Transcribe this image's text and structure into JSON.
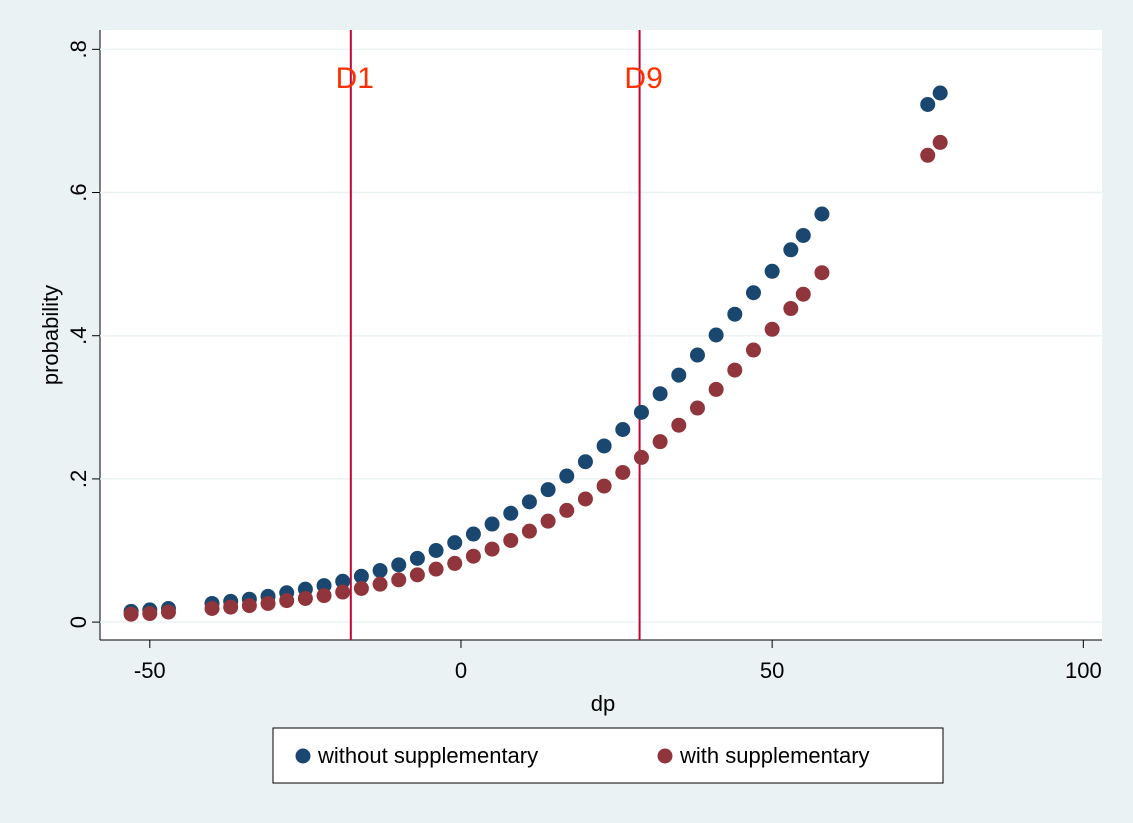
{
  "chart_data": {
    "type": "scatter",
    "x_label": "dp",
    "y_label": "probability",
    "xlim": [
      -58,
      103
    ],
    "ylim": [
      -0.025,
      0.827
    ],
    "xticks": [
      -50,
      0,
      50,
      100
    ],
    "yticks": [
      0,
      {
        "value": 0.2,
        "label": ".2"
      },
      {
        "value": 0.4,
        "label": ".4"
      },
      {
        "value": 0.6,
        "label": ".6"
      },
      {
        "value": 0.8,
        "label": ".8"
      }
    ],
    "grid": true,
    "legend": "bottom",
    "reference_lines": [
      {
        "value": -17.7,
        "label": "D1",
        "color": "#c10534",
        "label_color": "#ff3000"
      },
      {
        "value": 28.7,
        "label": "D9",
        "color": "#c10534",
        "label_color": "#ff3000"
      }
    ],
    "x": [
      -53,
      -50,
      -47,
      -40,
      -37,
      -34,
      -31,
      -28,
      -25,
      -22,
      -19,
      -16,
      -13,
      -10,
      -7,
      -4,
      -1,
      2,
      5,
      8,
      11,
      14,
      17,
      20,
      23,
      26,
      29,
      32,
      35,
      38,
      41,
      44,
      47,
      50,
      53,
      55,
      58,
      75,
      77
    ],
    "series": [
      {
        "name": "without supplementary",
        "color": "#1a476f",
        "values": [
          0.015,
          0.017,
          0.019,
          0.026,
          0.029,
          0.032,
          0.036,
          0.041,
          0.046,
          0.051,
          0.057,
          0.064,
          0.072,
          0.08,
          0.089,
          0.1,
          0.111,
          0.123,
          0.137,
          0.152,
          0.168,
          0.185,
          0.204,
          0.224,
          0.246,
          0.269,
          0.293,
          0.319,
          0.345,
          0.373,
          0.401,
          0.43,
          0.46,
          0.49,
          0.52,
          0.54,
          0.57,
          0.723,
          0.739
        ]
      },
      {
        "name": "with supplementary",
        "color": "#90353b",
        "values": [
          0.011,
          0.012,
          0.014,
          0.019,
          0.021,
          0.023,
          0.026,
          0.03,
          0.033,
          0.037,
          0.042,
          0.047,
          0.053,
          0.059,
          0.066,
          0.074,
          0.082,
          0.092,
          0.102,
          0.114,
          0.127,
          0.141,
          0.156,
          0.172,
          0.19,
          0.209,
          0.23,
          0.252,
          0.275,
          0.299,
          0.325,
          0.352,
          0.38,
          0.409,
          0.438,
          0.458,
          0.488,
          0.652,
          0.67
        ]
      }
    ]
  }
}
